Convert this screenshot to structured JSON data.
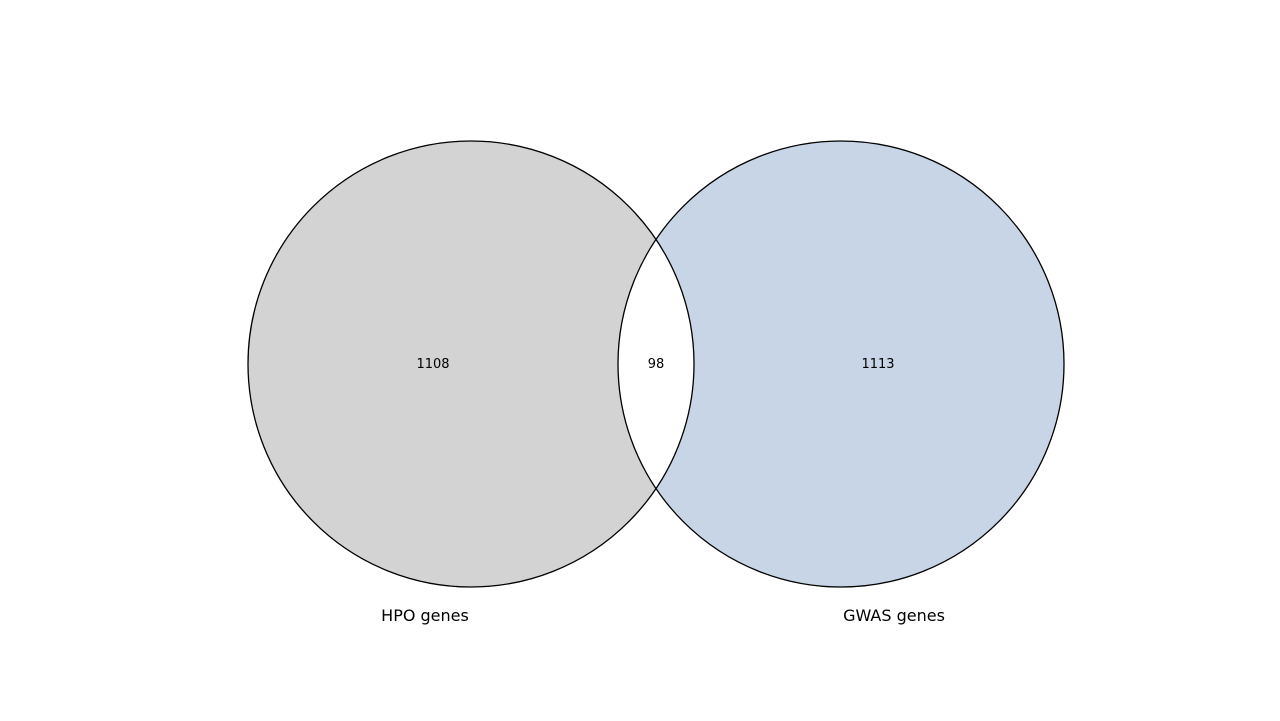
{
  "venn": {
    "sets": [
      {
        "label": "HPO genes",
        "only_count": "1108",
        "fill": "#d3d3d3"
      },
      {
        "label": "GWAS genes",
        "only_count": "1113",
        "fill": "#c8d5e6"
      }
    ],
    "intersection_count": "98",
    "intersection_fill": "#ffffff",
    "stroke": "#000000"
  }
}
